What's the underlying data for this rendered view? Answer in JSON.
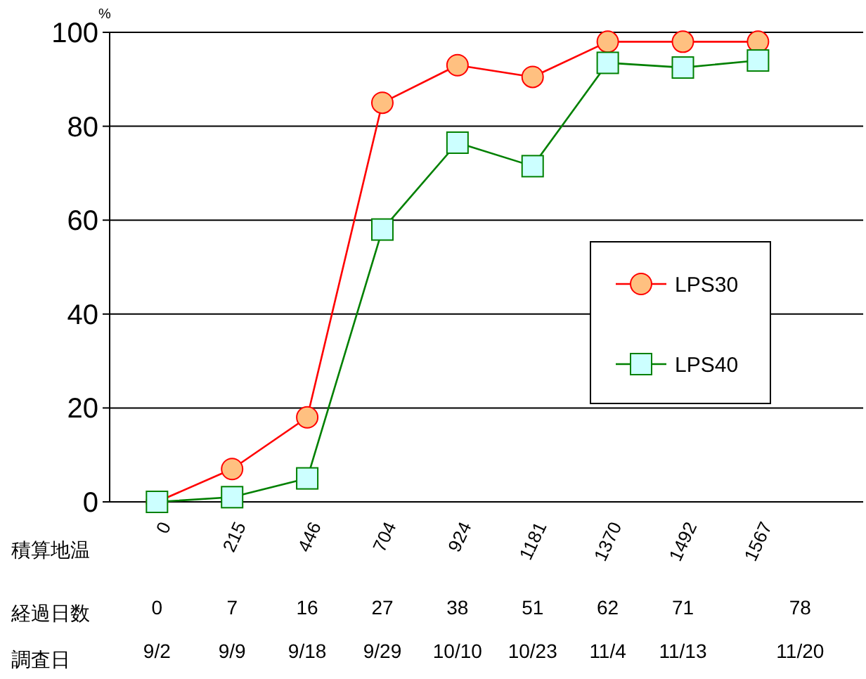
{
  "chart_data": {
    "type": "line",
    "ylabel": "%",
    "categories": [
      "0",
      "215",
      "446",
      "704",
      "924",
      "1181",
      "1370",
      "1492",
      "1567"
    ],
    "series": [
      {
        "name": "LPS30",
        "color": "#ff0000",
        "marker": "circle",
        "values": [
          0,
          7,
          18,
          85,
          93,
          90.5,
          98,
          98,
          98
        ]
      },
      {
        "name": "LPS40",
        "color": "#008000",
        "marker": "square",
        "values": [
          0,
          1,
          5,
          58,
          76.5,
          71.5,
          93.5,
          92.5,
          94
        ]
      }
    ],
    "ylim": [
      0,
      100
    ],
    "yticks": [
      0,
      20,
      40,
      60,
      80,
      100
    ],
    "grid": "y",
    "legend": "right",
    "annotations": [
      "積算地温",
      "経過日数",
      "0",
      "7",
      "16",
      "27",
      "38",
      "51",
      "62",
      "71",
      "78",
      "調査日",
      "9/2",
      "9/9",
      "9/18",
      "9/29",
      "10/10",
      "10/23",
      "11/4",
      "11/13",
      "11/20"
    ]
  }
}
